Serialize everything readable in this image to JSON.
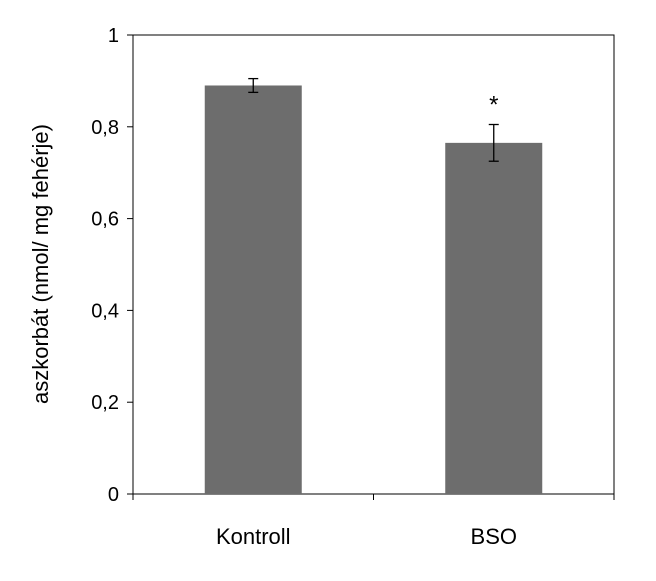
{
  "chart_data": {
    "type": "bar",
    "title": "",
    "xlabel": "",
    "ylabel": "aszkorbát (nmol/ mg fehérje)",
    "categories": [
      "Kontroll",
      "BSO"
    ],
    "values": [
      0.89,
      0.765
    ],
    "errors": [
      0.015,
      0.04
    ],
    "annotations": [
      "",
      "*"
    ],
    "ylim": [
      0,
      1
    ],
    "yticks": [
      0,
      0.2,
      0.4,
      0.6,
      0.8,
      1
    ],
    "ytick_labels": [
      "0",
      "0,2",
      "0,4",
      "0,6",
      "0,8",
      "1"
    ],
    "grid": false,
    "legend": "none",
    "bar_color": "#6d6d6d"
  }
}
